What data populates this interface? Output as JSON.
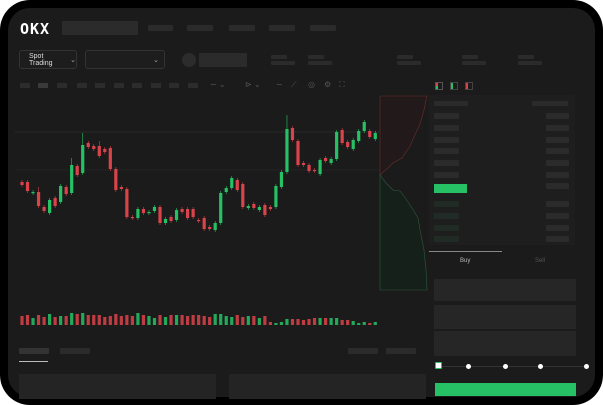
{
  "header": {
    "logo": "OKX"
  },
  "market": {
    "mode_label": "Spot Trading"
  },
  "trade": {
    "tabs": [
      {
        "label": "Buy"
      },
      {
        "label": "Sell"
      }
    ],
    "slider_value_percent": 0
  },
  "colors": {
    "up": "#26c165",
    "down": "#d9434a",
    "background": "#1b1b1b",
    "placeholder": "#2b2b2b"
  },
  "icons": [
    "chevron-down-icon",
    "orderbook-both-icon",
    "orderbook-buy-icon",
    "orderbook-sell-icon",
    "camera-icon",
    "settings-icon",
    "fullscreen-icon"
  ],
  "candles": [
    [
      118,
      115
    ],
    [
      118,
      109
    ],
    [
      107,
      108
    ],
    [
      108,
      94,
      113
    ],
    [
      93,
      89
    ],
    [
      87,
      100
    ],
    [
      102,
      94
    ],
    [
      98,
      114
    ],
    [
      113,
      106
    ],
    [
      107,
      135,
      142
    ],
    [
      134,
      125
    ],
    [
      127,
      155,
      167
    ],
    [
      157,
      153
    ],
    [
      154,
      151
    ],
    [
      154,
      144,
      159
    ],
    [
      151,
      148
    ],
    [
      152,
      131
    ],
    [
      131,
      110
    ],
    [
      113,
      111
    ],
    [
      111,
      83
    ],
    [
      83,
      82
    ],
    [
      82,
      91
    ],
    [
      91,
      87
    ],
    [
      87,
      88
    ],
    [
      89,
      93
    ],
    [
      93,
      77
    ],
    [
      77,
      81
    ],
    [
      83,
      79
    ],
    [
      80,
      90
    ],
    [
      91,
      88
    ],
    [
      91,
      82
    ],
    [
      91,
      83
    ],
    [
      80,
      79
    ],
    [
      82,
      71
    ],
    [
      73,
      71
    ],
    [
      70,
      77
    ],
    [
      77,
      107
    ],
    [
      108,
      112
    ],
    [
      112,
      122
    ],
    [
      120,
      110
    ],
    [
      116,
      93
    ],
    [
      92,
      94
    ],
    [
      96,
      92
    ],
    [
      90,
      93
    ],
    [
      95,
      85
    ],
    [
      93,
      91
    ],
    [
      93,
      114
    ],
    [
      113,
      128
    ],
    [
      128,
      171,
      185
    ],
    [
      172,
      160
    ],
    [
      159,
      135
    ],
    [
      137,
      135
    ],
    [
      135,
      129
    ],
    [
      130,
      129
    ],
    [
      126,
      140
    ],
    [
      142,
      139
    ],
    [
      137,
      141
    ],
    [
      141,
      168
    ],
    [
      170,
      157
    ],
    [
      158,
      153
    ],
    [
      151,
      160
    ],
    [
      159,
      169
    ],
    [
      169,
      178
    ],
    [
      169,
      163
    ],
    [
      161,
      167
    ]
  ],
  "volumes": [
    9,
    10,
    7,
    10,
    8,
    11,
    8,
    9,
    9,
    12,
    11,
    12,
    10,
    10,
    10,
    8,
    9,
    11,
    9,
    10,
    9,
    12,
    10,
    9,
    7,
    10,
    8,
    10,
    10,
    10,
    9,
    10,
    10,
    9,
    8,
    11,
    11,
    9,
    8,
    10,
    8,
    9,
    9,
    7,
    9,
    3,
    2,
    3,
    6,
    6,
    6,
    5,
    6,
    7,
    7,
    7,
    7,
    7,
    5,
    5,
    4,
    2,
    3,
    2,
    3
  ]
}
